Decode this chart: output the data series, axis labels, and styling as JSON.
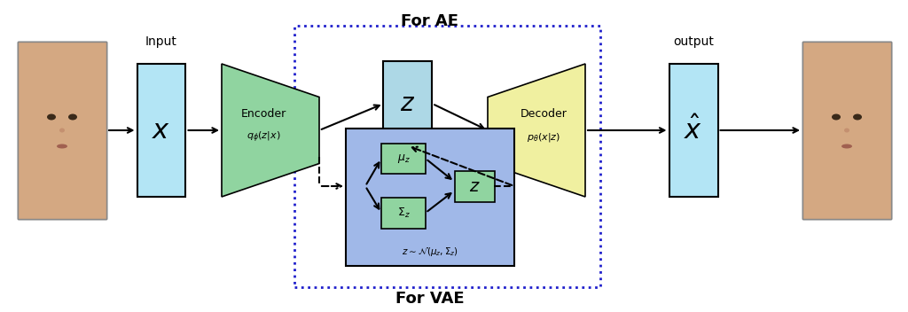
{
  "fig_width": 10.24,
  "fig_height": 3.52,
  "bg_color": "#ffffff",
  "input_label": "Input",
  "output_label": "output",
  "for_ae_label": "For AE",
  "for_vae_label": "For VAE",
  "encoder_label1": "Encoder",
  "encoder_label2": "$q_\\phi(z|x)$",
  "decoder_label1": "Decoder",
  "decoder_label2": "$p_\\theta(x|z)$",
  "x_label": "$x$",
  "z_label": "$z$",
  "xhat_label": "$\\hat{x}$",
  "z_small_label": "$z$",
  "mu_label": "$\\mu_z$",
  "sigma_label": "$\\Sigma_z$",
  "vae_eq": "$z \\sim \\mathcal{N}(\\mu_z, \\Sigma_z)$",
  "light_blue": "#b3e5f5",
  "cyan_blue": "#add8e6",
  "green": "#90d4a0",
  "yellow": "#f0f0a0",
  "blue_box": "#a0b8e8",
  "dashed_blue": "#2020cc",
  "dashed_black": "#000000"
}
